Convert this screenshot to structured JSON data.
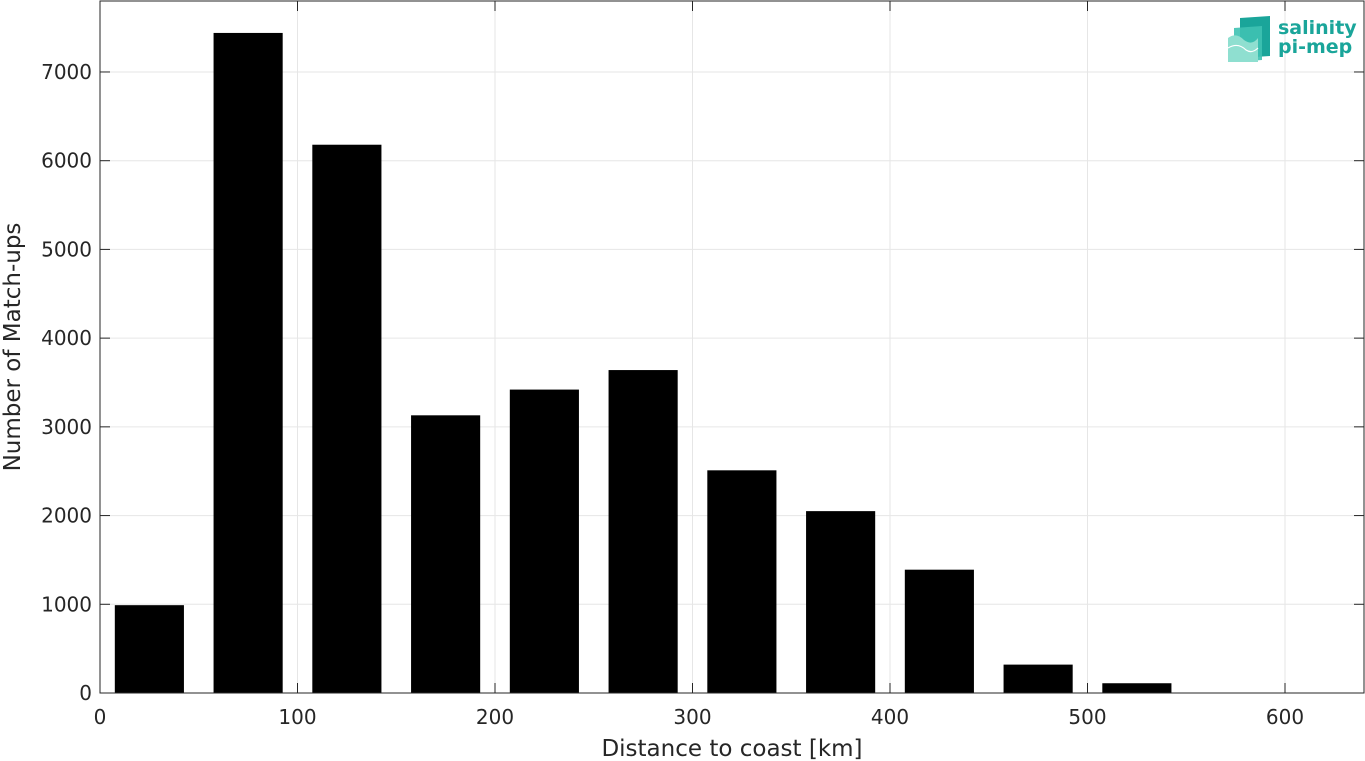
{
  "chart_data": {
    "type": "bar",
    "xlabel": "Distance to coast [km]",
    "ylabel": "Number of Match-ups",
    "xlim": [
      0,
      640
    ],
    "ylim": [
      0,
      7800
    ],
    "xticks": [
      0,
      100,
      200,
      300,
      400,
      500,
      600
    ],
    "yticks": [
      0,
      1000,
      2000,
      3000,
      4000,
      5000,
      6000,
      7000
    ],
    "grid": true,
    "bar_color": "#000000",
    "bin_width": 50,
    "bar_width": 35,
    "bins": [
      25,
      75,
      125,
      175,
      225,
      275,
      325,
      375,
      425,
      475,
      525
    ],
    "values": [
      990,
      7440,
      6180,
      3130,
      3420,
      3640,
      2510,
      2050,
      1390,
      320,
      110
    ]
  },
  "logo": {
    "line1": "salinity",
    "line2": "pi-mep",
    "color": "#1aa59a"
  }
}
